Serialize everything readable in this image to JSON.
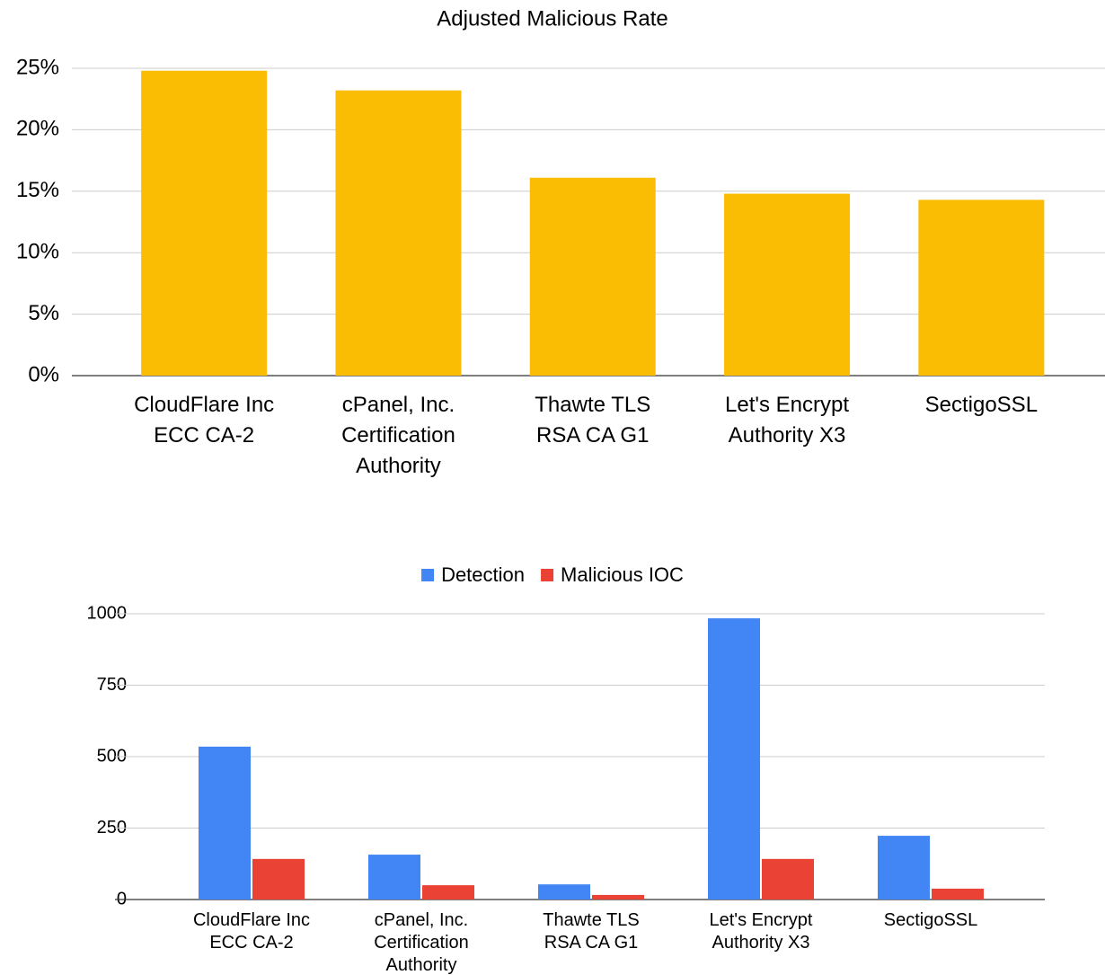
{
  "chart_data": [
    {
      "type": "bar",
      "title": "Adjusted Malicious Rate",
      "categories": [
        "CloudFlare Inc ECC CA-2",
        "cPanel, Inc. Certification Authority",
        "Thawte TLS RSA CA G1",
        "Let's Encrypt Authority X3",
        "SectigoSSL"
      ],
      "values": [
        24.8,
        23.2,
        16.1,
        14.8,
        14.3
      ],
      "color": "#fbbc04",
      "ylim": [
        0,
        25
      ],
      "yticks": [
        {
          "value": 0,
          "label": "0%"
        },
        {
          "value": 5,
          "label": "5%"
        },
        {
          "value": 10,
          "label": "10%"
        },
        {
          "value": 15,
          "label": "15%"
        },
        {
          "value": 20,
          "label": "20%"
        },
        {
          "value": 25,
          "label": "25%"
        }
      ],
      "grid": true
    },
    {
      "type": "grouped_bar",
      "categories": [
        "CloudFlare Inc ECC CA-2",
        "cPanel, Inc. Certification Authority",
        "Thawte TLS RSA CA G1",
        "Let's Encrypt Authority X3",
        "SectigoSSL"
      ],
      "series": [
        {
          "name": "Detection",
          "color": "#4285f4",
          "values": [
            535,
            157,
            53,
            984,
            223
          ]
        },
        {
          "name": "Malicious IOC",
          "color": "#ea4335",
          "values": [
            142,
            50,
            16,
            142,
            38
          ]
        }
      ],
      "ylim": [
        0,
        1000
      ],
      "yticks": [
        0,
        250,
        500,
        750,
        1000
      ],
      "grid": true,
      "legend": "top"
    }
  ]
}
